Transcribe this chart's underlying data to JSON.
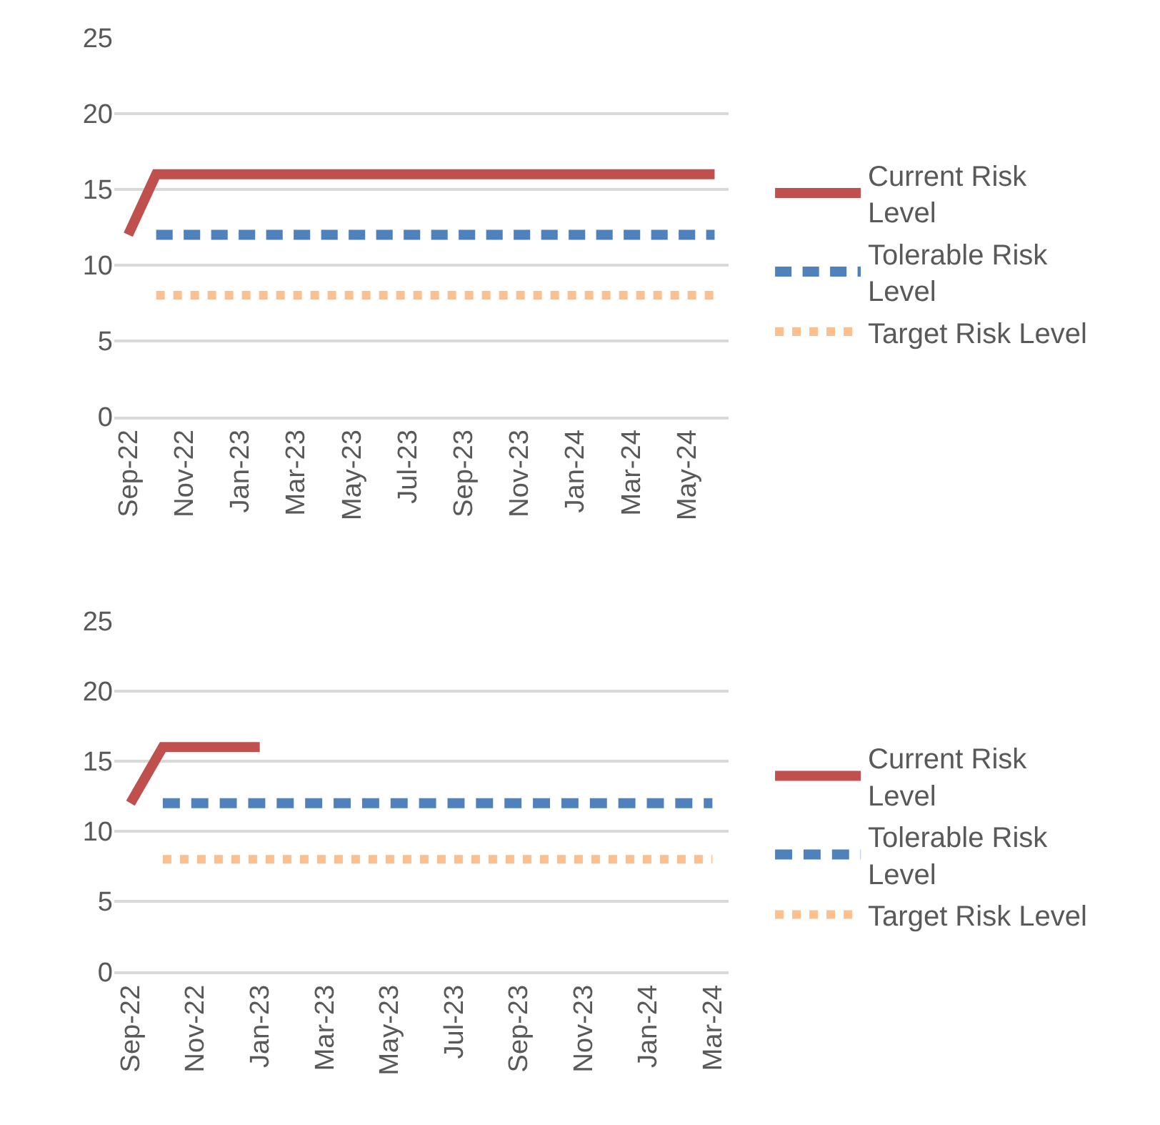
{
  "chart_data": [
    {
      "type": "line",
      "categories": [
        "Sep-22",
        null,
        "Nov-22",
        null,
        "Jan-23",
        null,
        "Mar-23",
        null,
        "May-23",
        null,
        "Jul-23",
        null,
        "Sep-23",
        null,
        "Nov-23",
        null,
        "Jan-24",
        null,
        "Mar-24",
        null,
        "May-24",
        null
      ],
      "ylim": [
        0,
        25
      ],
      "yticks": [
        0,
        5,
        10,
        15,
        20,
        25
      ],
      "grid": "y",
      "legend": "right",
      "series": [
        {
          "name": "Current Risk Level",
          "color": "#c0504d",
          "line_style": "solid",
          "values": [
            12,
            16,
            16,
            16,
            16,
            16,
            16,
            16,
            16,
            16,
            16,
            16,
            16,
            16,
            16,
            16,
            16,
            16,
            16,
            16,
            16,
            16
          ]
        },
        {
          "name": "Tolerable Risk Level",
          "color": "#4f81bd",
          "line_style": "dashed",
          "values": [
            null,
            12,
            12,
            12,
            12,
            12,
            12,
            12,
            12,
            12,
            12,
            12,
            12,
            12,
            12,
            12,
            12,
            12,
            12,
            12,
            12,
            12
          ]
        },
        {
          "name": "Target Risk Level",
          "color": "#fac090",
          "line_style": "dotted",
          "values": [
            null,
            8,
            8,
            8,
            8,
            8,
            8,
            8,
            8,
            8,
            8,
            8,
            8,
            8,
            8,
            8,
            8,
            8,
            8,
            8,
            8,
            8
          ]
        }
      ]
    },
    {
      "type": "line",
      "categories": [
        "Sep-22",
        null,
        "Nov-22",
        null,
        "Jan-23",
        null,
        "Mar-23",
        null,
        "May-23",
        null,
        "Jul-23",
        null,
        "Sep-23",
        null,
        "Nov-23",
        null,
        "Jan-24",
        null,
        "Mar-24"
      ],
      "ylim": [
        0,
        25
      ],
      "yticks": [
        0,
        5,
        10,
        15,
        20,
        25
      ],
      "grid": "y",
      "legend": "right",
      "series": [
        {
          "name": "Current Risk Level",
          "color": "#c0504d",
          "line_style": "solid",
          "values": [
            12,
            16,
            16,
            16,
            16,
            null,
            null,
            null,
            null,
            null,
            null,
            null,
            null,
            null,
            null,
            null,
            null,
            null,
            null
          ]
        },
        {
          "name": "Tolerable Risk Level",
          "color": "#4f81bd",
          "line_style": "dashed",
          "values": [
            null,
            12,
            12,
            12,
            12,
            12,
            12,
            12,
            12,
            12,
            12,
            12,
            12,
            12,
            12,
            12,
            12,
            12,
            12
          ]
        },
        {
          "name": "Target Risk Level",
          "color": "#fac090",
          "line_style": "dotted",
          "values": [
            null,
            8,
            8,
            8,
            8,
            8,
            8,
            8,
            8,
            8,
            8,
            8,
            8,
            8,
            8,
            8,
            8,
            8,
            8
          ]
        }
      ]
    }
  ]
}
